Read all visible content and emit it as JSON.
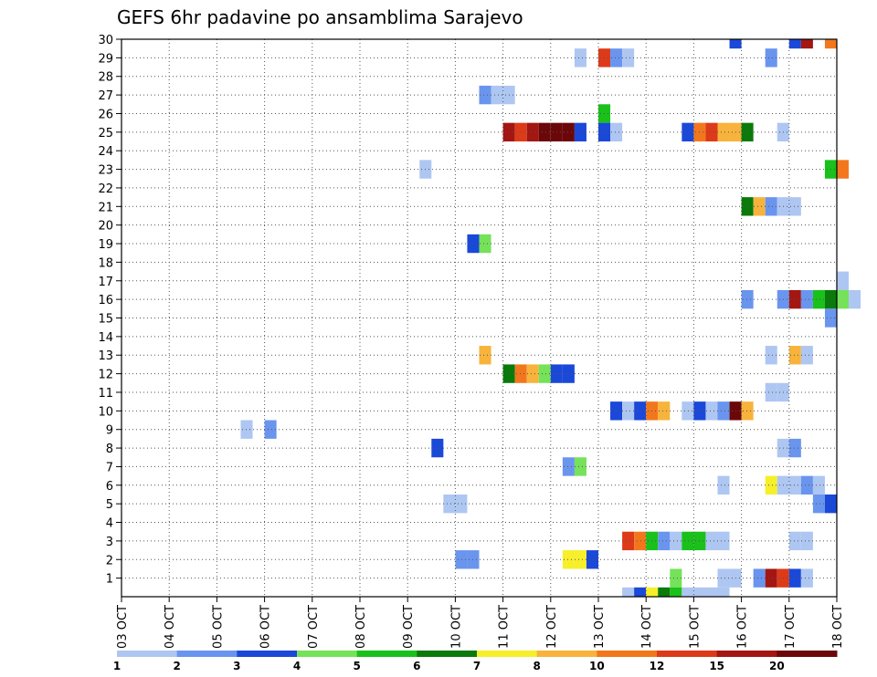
{
  "chart_data": {
    "type": "heatmap",
    "title": "GEFS 6hr padavine po ansamblima Sarajevo",
    "xlabel": "",
    "ylabel": "",
    "x_tick_labels": [
      "03 OCT",
      "04 OCT",
      "05 OCT",
      "06 OCT",
      "07 OCT",
      "08 OCT",
      "09 OCT",
      "10 OCT",
      "11 OCT",
      "12 OCT",
      "13 OCT",
      "14 OCT",
      "15 OCT",
      "16 OCT",
      "17 OCT",
      "18 OCT"
    ],
    "x_range_days": [
      0,
      15
    ],
    "y_tick_labels": [
      "1",
      "2",
      "3",
      "4",
      "5",
      "6",
      "7",
      "8",
      "9",
      "10",
      "11",
      "12",
      "13",
      "14",
      "15",
      "16",
      "17",
      "18",
      "19",
      "20",
      "21",
      "22",
      "23",
      "24",
      "25",
      "26",
      "27",
      "28",
      "29",
      "30"
    ],
    "y_range": [
      0,
      30
    ],
    "grid": true,
    "legend": "colorbar-bottom",
    "colorbar": {
      "labels": [
        "1",
        "2",
        "3",
        "4",
        "5",
        "6",
        "7",
        "8",
        "10",
        "12",
        "15",
        "20"
      ],
      "colors": [
        "#aec6f2",
        "#6a95ee",
        "#1a48d8",
        "#75e25a",
        "#19c11a",
        "#0a7a0a",
        "#f6ef2a",
        "#f7b33b",
        "#f2771c",
        "#dd3a19",
        "#a31612",
        "#6b0709"
      ]
    },
    "cells_note": "each cell: member, start day (days after 03 OCT), end day, precipitation class index into colorbar.colors",
    "cells": [
      [
        30,
        12.75,
        13.0,
        3
      ],
      [
        30,
        14.0,
        14.25,
        3
      ],
      [
        30,
        14.25,
        14.5,
        11
      ],
      [
        30,
        14.75,
        15.0,
        9
      ],
      [
        29,
        9.5,
        9.75,
        1
      ],
      [
        29,
        10.0,
        10.25,
        10
      ],
      [
        29,
        10.25,
        10.5,
        2
      ],
      [
        29,
        10.5,
        10.75,
        1
      ],
      [
        29,
        13.5,
        13.75,
        2
      ],
      [
        27,
        7.5,
        7.75,
        2
      ],
      [
        27,
        7.75,
        8.0,
        1
      ],
      [
        27,
        8.0,
        8.25,
        1
      ],
      [
        26,
        10.0,
        10.25,
        5
      ],
      [
        25,
        8.0,
        8.25,
        11
      ],
      [
        25,
        8.25,
        8.5,
        10
      ],
      [
        25,
        8.5,
        8.75,
        11
      ],
      [
        25,
        8.75,
        9.0,
        12
      ],
      [
        25,
        9.0,
        9.25,
        12
      ],
      [
        25,
        9.25,
        9.5,
        12
      ],
      [
        25,
        9.5,
        9.75,
        3
      ],
      [
        25,
        10.0,
        10.25,
        3
      ],
      [
        25,
        10.25,
        10.5,
        1
      ],
      [
        25,
        11.75,
        12.0,
        3
      ],
      [
        25,
        12.0,
        12.25,
        9
      ],
      [
        25,
        12.25,
        12.5,
        10
      ],
      [
        25,
        12.5,
        12.75,
        8
      ],
      [
        25,
        12.75,
        13.0,
        8
      ],
      [
        25,
        13.0,
        13.25,
        6
      ],
      [
        25,
        13.75,
        14.0,
        1
      ],
      [
        23,
        6.25,
        6.5,
        1
      ],
      [
        23,
        14.75,
        15.0,
        5
      ],
      [
        23,
        15.0,
        15.25,
        9
      ],
      [
        21,
        13.0,
        13.25,
        6
      ],
      [
        21,
        13.25,
        13.5,
        8
      ],
      [
        21,
        13.5,
        13.75,
        2
      ],
      [
        21,
        13.75,
        14.0,
        1
      ],
      [
        21,
        14.0,
        14.25,
        1
      ],
      [
        19,
        7.25,
        7.5,
        3
      ],
      [
        19,
        7.5,
        7.75,
        4
      ],
      [
        17,
        15.0,
        15.25,
        1
      ],
      [
        16,
        13.0,
        13.25,
        2
      ],
      [
        16,
        13.75,
        14.0,
        2
      ],
      [
        16,
        14.0,
        14.25,
        11
      ],
      [
        16,
        14.25,
        14.5,
        2
      ],
      [
        16,
        14.5,
        14.75,
        5
      ],
      [
        16,
        14.75,
        15.0,
        6
      ],
      [
        16,
        15.0,
        15.25,
        4
      ],
      [
        16,
        15.25,
        15.5,
        1
      ],
      [
        15,
        14.75,
        15.0,
        2
      ],
      [
        13,
        7.5,
        7.75,
        8
      ],
      [
        13,
        13.5,
        13.75,
        1
      ],
      [
        13,
        14.0,
        14.25,
        8
      ],
      [
        13,
        14.25,
        14.5,
        1
      ],
      [
        12,
        8.0,
        8.25,
        6
      ],
      [
        12,
        8.25,
        8.5,
        9
      ],
      [
        12,
        8.5,
        8.75,
        8
      ],
      [
        12,
        8.75,
        9.0,
        4
      ],
      [
        12,
        9.0,
        9.25,
        3
      ],
      [
        12,
        9.25,
        9.5,
        3
      ],
      [
        11,
        13.5,
        13.75,
        1
      ],
      [
        11,
        13.75,
        14.0,
        1
      ],
      [
        10,
        10.25,
        10.5,
        3
      ],
      [
        10,
        10.5,
        10.75,
        1
      ],
      [
        10,
        10.75,
        11.0,
        3
      ],
      [
        10,
        11.0,
        11.25,
        9
      ],
      [
        10,
        11.25,
        11.5,
        8
      ],
      [
        10,
        11.75,
        12.0,
        1
      ],
      [
        10,
        12.0,
        12.25,
        3
      ],
      [
        10,
        12.25,
        12.5,
        1
      ],
      [
        10,
        12.5,
        12.75,
        2
      ],
      [
        10,
        12.75,
        13.0,
        12
      ],
      [
        10,
        13.0,
        13.25,
        8
      ],
      [
        9,
        2.5,
        2.75,
        1
      ],
      [
        9,
        3.0,
        3.25,
        2
      ],
      [
        8,
        6.5,
        6.75,
        3
      ],
      [
        8,
        13.75,
        14.0,
        1
      ],
      [
        8,
        14.0,
        14.25,
        2
      ],
      [
        7,
        9.25,
        9.5,
        2
      ],
      [
        7,
        9.5,
        9.75,
        4
      ],
      [
        6,
        12.5,
        12.75,
        1
      ],
      [
        6,
        13.5,
        13.75,
        7
      ],
      [
        6,
        13.75,
        14.0,
        1
      ],
      [
        6,
        14.0,
        14.25,
        1
      ],
      [
        6,
        14.25,
        14.5,
        2
      ],
      [
        6,
        14.5,
        14.75,
        1
      ],
      [
        5,
        6.75,
        7.0,
        1
      ],
      [
        5,
        7.0,
        7.25,
        1
      ],
      [
        5,
        14.5,
        14.75,
        2
      ],
      [
        5,
        14.75,
        15.0,
        3
      ],
      [
        3,
        10.5,
        10.75,
        10
      ],
      [
        3,
        10.75,
        11.0,
        9
      ],
      [
        3,
        11.0,
        11.25,
        5
      ],
      [
        3,
        11.25,
        11.5,
        2
      ],
      [
        3,
        11.5,
        11.75,
        1
      ],
      [
        3,
        11.75,
        12.0,
        5
      ],
      [
        3,
        12.0,
        12.25,
        5
      ],
      [
        3,
        12.25,
        12.5,
        1
      ],
      [
        3,
        12.5,
        12.75,
        1
      ],
      [
        3,
        14.0,
        14.25,
        1
      ],
      [
        3,
        14.25,
        14.5,
        1
      ],
      [
        2,
        7.0,
        7.25,
        2
      ],
      [
        2,
        7.25,
        7.5,
        2
      ],
      [
        2,
        9.25,
        9.5,
        7
      ],
      [
        2,
        9.5,
        9.75,
        7
      ],
      [
        2,
        9.75,
        10.0,
        3
      ],
      [
        1,
        11.5,
        11.75,
        4
      ],
      [
        1,
        12.5,
        12.75,
        1
      ],
      [
        1,
        12.75,
        13.0,
        1
      ],
      [
        1,
        13.25,
        13.5,
        2
      ],
      [
        1,
        13.5,
        13.75,
        11
      ],
      [
        1,
        13.75,
        14.0,
        10
      ],
      [
        1,
        14.0,
        14.25,
        3
      ],
      [
        1,
        14.25,
        14.5,
        1
      ],
      [
        0,
        10.5,
        10.75,
        1
      ],
      [
        0,
        10.75,
        11.0,
        3
      ],
      [
        0,
        11.0,
        11.25,
        7
      ],
      [
        0,
        11.25,
        11.5,
        6
      ],
      [
        0,
        11.5,
        11.75,
        5
      ],
      [
        0,
        11.75,
        12.0,
        1
      ],
      [
        0,
        12.0,
        12.25,
        1
      ],
      [
        0,
        12.25,
        12.5,
        1
      ],
      [
        0,
        12.5,
        12.75,
        1
      ]
    ]
  }
}
